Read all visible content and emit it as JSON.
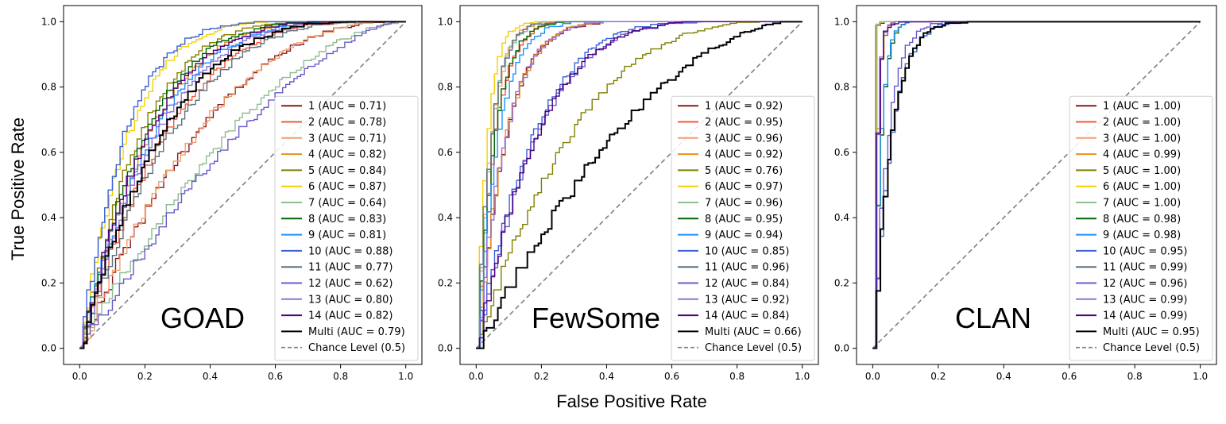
{
  "figure": {
    "xlabel": "False Positive Rate",
    "ylabel": "True Positive Rate"
  },
  "chart_data": [
    {
      "type": "line",
      "panel_name": "GOAD",
      "xlim": [
        0.0,
        1.0
      ],
      "ylim": [
        0.0,
        1.0
      ],
      "x_ticks": [
        "0.0",
        "0.2",
        "0.4",
        "0.6",
        "0.8",
        "1.0"
      ],
      "y_ticks": [
        "0.0",
        "0.2",
        "0.4",
        "0.6",
        "0.8",
        "1.0"
      ],
      "legend_position": "lower-right",
      "series": [
        {
          "name": "1 (AUC = 0.71)",
          "auc": 0.71,
          "color": "#8b1a1a"
        },
        {
          "name": "2 (AUC = 0.78)",
          "auc": 0.78,
          "color": "#f05a3c"
        },
        {
          "name": "3 (AUC = 0.71)",
          "auc": 0.71,
          "color": "#f0a070"
        },
        {
          "name": "4 (AUC = 0.82)",
          "auc": 0.82,
          "color": "#e8901a"
        },
        {
          "name": "5 (AUC = 0.84)",
          "auc": 0.84,
          "color": "#808000"
        },
        {
          "name": "6 (AUC = 0.87)",
          "auc": 0.87,
          "color": "#f5d000"
        },
        {
          "name": "7 (AUC = 0.64)",
          "auc": 0.64,
          "color": "#8fbc8f"
        },
        {
          "name": "8 (AUC = 0.83)",
          "auc": 0.83,
          "color": "#006400"
        },
        {
          "name": "9 (AUC = 0.81)",
          "auc": 0.81,
          "color": "#1e90ff"
        },
        {
          "name": "10 (AUC = 0.88)",
          "auc": 0.88,
          "color": "#3a62d4"
        },
        {
          "name": "11 (AUC = 0.77)",
          "auc": 0.77,
          "color": "#5e7080"
        },
        {
          "name": "12 (AUC = 0.62)",
          "auc": 0.62,
          "color": "#6a5acd"
        },
        {
          "name": "13 (AUC = 0.80)",
          "auc": 0.8,
          "color": "#9370db"
        },
        {
          "name": "14 (AUC = 0.82)",
          "auc": 0.82,
          "color": "#4b0082"
        },
        {
          "name": "Multi (AUC = 0.79)",
          "auc": 0.79,
          "color": "#000000"
        }
      ],
      "chance": {
        "name": "Chance Level (0.5)",
        "color": "#808080"
      }
    },
    {
      "type": "line",
      "panel_name": "FewSome",
      "xlim": [
        0.0,
        1.0
      ],
      "ylim": [
        0.0,
        1.0
      ],
      "x_ticks": [
        "0.0",
        "0.2",
        "0.4",
        "0.6",
        "0.8",
        "1.0"
      ],
      "y_ticks": [
        "0.0",
        "0.2",
        "0.4",
        "0.6",
        "0.8",
        "1.0"
      ],
      "legend_position": "lower-right",
      "series": [
        {
          "name": "1 (AUC = 0.92)",
          "auc": 0.92,
          "color": "#8b1a1a"
        },
        {
          "name": "2 (AUC = 0.95)",
          "auc": 0.95,
          "color": "#f05a3c"
        },
        {
          "name": "3 (AUC = 0.96)",
          "auc": 0.96,
          "color": "#f0a070"
        },
        {
          "name": "4 (AUC = 0.92)",
          "auc": 0.92,
          "color": "#e8901a"
        },
        {
          "name": "5 (AUC = 0.76)",
          "auc": 0.76,
          "color": "#808000"
        },
        {
          "name": "6 (AUC = 0.97)",
          "auc": 0.97,
          "color": "#f5d000"
        },
        {
          "name": "7 (AUC = 0.96)",
          "auc": 0.96,
          "color": "#8fbc8f"
        },
        {
          "name": "8 (AUC = 0.95)",
          "auc": 0.95,
          "color": "#006400"
        },
        {
          "name": "9 (AUC = 0.94)",
          "auc": 0.94,
          "color": "#1e90ff"
        },
        {
          "name": "10 (AUC = 0.85)",
          "auc": 0.85,
          "color": "#3a62d4"
        },
        {
          "name": "11 (AUC = 0.96)",
          "auc": 0.96,
          "color": "#5e7080"
        },
        {
          "name": "12 (AUC = 0.84)",
          "auc": 0.84,
          "color": "#6a5acd"
        },
        {
          "name": "13 (AUC = 0.92)",
          "auc": 0.92,
          "color": "#9370db"
        },
        {
          "name": "14 (AUC = 0.84)",
          "auc": 0.84,
          "color": "#4b0082"
        },
        {
          "name": "Multi (AUC = 0.66)",
          "auc": 0.66,
          "color": "#000000"
        }
      ],
      "chance": {
        "name": "Chance Level (0.5)",
        "color": "#808080"
      }
    },
    {
      "type": "line",
      "panel_name": "CLAN",
      "xlim": [
        0.0,
        1.0
      ],
      "ylim": [
        0.0,
        1.0
      ],
      "x_ticks": [
        "0.0",
        "0.2",
        "0.4",
        "0.6",
        "0.8",
        "1.0"
      ],
      "y_ticks": [
        "0.0",
        "0.2",
        "0.4",
        "0.6",
        "0.8",
        "1.0"
      ],
      "legend_position": "lower-right",
      "series": [
        {
          "name": "1 (AUC = 1.00)",
          "auc": 1.0,
          "color": "#8b1a1a"
        },
        {
          "name": "2 (AUC = 1.00)",
          "auc": 1.0,
          "color": "#f05a3c"
        },
        {
          "name": "3 (AUC = 1.00)",
          "auc": 1.0,
          "color": "#f0a070"
        },
        {
          "name": "4 (AUC = 0.99)",
          "auc": 0.99,
          "color": "#e8901a"
        },
        {
          "name": "5 (AUC = 1.00)",
          "auc": 1.0,
          "color": "#808000"
        },
        {
          "name": "6 (AUC = 1.00)",
          "auc": 1.0,
          "color": "#f5d000"
        },
        {
          "name": "7 (AUC = 1.00)",
          "auc": 1.0,
          "color": "#8fbc8f"
        },
        {
          "name": "8 (AUC = 0.98)",
          "auc": 0.98,
          "color": "#006400"
        },
        {
          "name": "9 (AUC = 0.98)",
          "auc": 0.98,
          "color": "#1e90ff"
        },
        {
          "name": "10 (AUC = 0.95)",
          "auc": 0.95,
          "color": "#3a62d4"
        },
        {
          "name": "11 (AUC = 0.99)",
          "auc": 0.99,
          "color": "#5e7080"
        },
        {
          "name": "12 (AUC = 0.96)",
          "auc": 0.96,
          "color": "#6a5acd"
        },
        {
          "name": "13 (AUC = 0.99)",
          "auc": 0.99,
          "color": "#9370db"
        },
        {
          "name": "14 (AUC = 0.99)",
          "auc": 0.99,
          "color": "#4b0082"
        },
        {
          "name": "Multi (AUC = 0.95)",
          "auc": 0.95,
          "color": "#000000"
        }
      ],
      "chance": {
        "name": "Chance Level (0.5)",
        "color": "#808080"
      }
    }
  ]
}
